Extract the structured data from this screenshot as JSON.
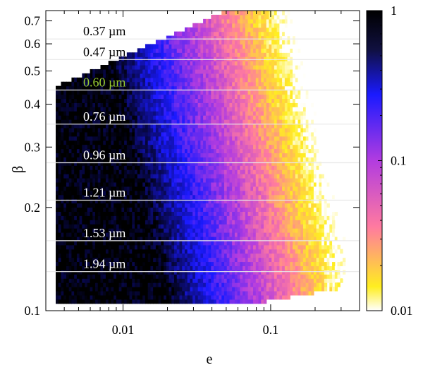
{
  "chart_data": {
    "type": "heatmap",
    "title": "",
    "xlabel": "e",
    "ylabel": "β",
    "x_scale": "log",
    "y_scale": "log",
    "xlim": [
      0.003,
      0.4
    ],
    "ylim": [
      0.1,
      0.75
    ],
    "x_ticks": [
      {
        "value": 0.01,
        "label": "0.01"
      },
      {
        "value": 0.1,
        "label": "0.1"
      }
    ],
    "y_ticks": [
      {
        "value": 0.1,
        "label": "0.1"
      },
      {
        "value": 0.2,
        "label": "0.2"
      },
      {
        "value": 0.3,
        "label": "0.3"
      },
      {
        "value": 0.4,
        "label": "0.4"
      },
      {
        "value": 0.5,
        "label": "0.5"
      },
      {
        "value": 0.6,
        "label": "0.6"
      },
      {
        "value": 0.7,
        "label": "0.7"
      }
    ],
    "colorbar": {
      "scale": "log",
      "range": [
        0.01,
        1
      ],
      "ticks": [
        {
          "value": 1,
          "label": "1"
        },
        {
          "value": 0.1,
          "label": "0.1"
        },
        {
          "value": 0.01,
          "label": "0.01"
        }
      ],
      "colormap": [
        {
          "value": 1,
          "color": "#000000"
        },
        {
          "value": 0.3,
          "color": "#1a1aff"
        },
        {
          "value": 0.1,
          "color": "#b23ce0"
        },
        {
          "value": 0.04,
          "color": "#ff7aa0"
        },
        {
          "value": 0.015,
          "color": "#ffee20"
        },
        {
          "value": 0.01,
          "color": "#ffffff"
        }
      ]
    },
    "grain_sizes": [
      {
        "label": "0.37 µm",
        "beta": 0.62,
        "color": "#000000"
      },
      {
        "label": "0.47 µm",
        "beta": 0.54,
        "color": "#000000"
      },
      {
        "label": "0.60 µm",
        "beta": 0.44,
        "color": "#9acd32"
      },
      {
        "label": "0.76 µm",
        "beta": 0.35,
        "color": "#ffffff"
      },
      {
        "label": "0.96 µm",
        "beta": 0.27,
        "color": "#ffffff"
      },
      {
        "label": "1.21 µm",
        "beta": 0.21,
        "color": "#ffffff"
      },
      {
        "label": "1.53 µm",
        "beta": 0.16,
        "color": "#ffffff"
      },
      {
        "label": "1.94 µm",
        "beta": 0.13,
        "color": "#ffffff"
      }
    ],
    "data_extent": {
      "e_min": 0.0035,
      "e_max": 0.32,
      "beta_min": 0.105,
      "beta_max": 0.75
    }
  }
}
